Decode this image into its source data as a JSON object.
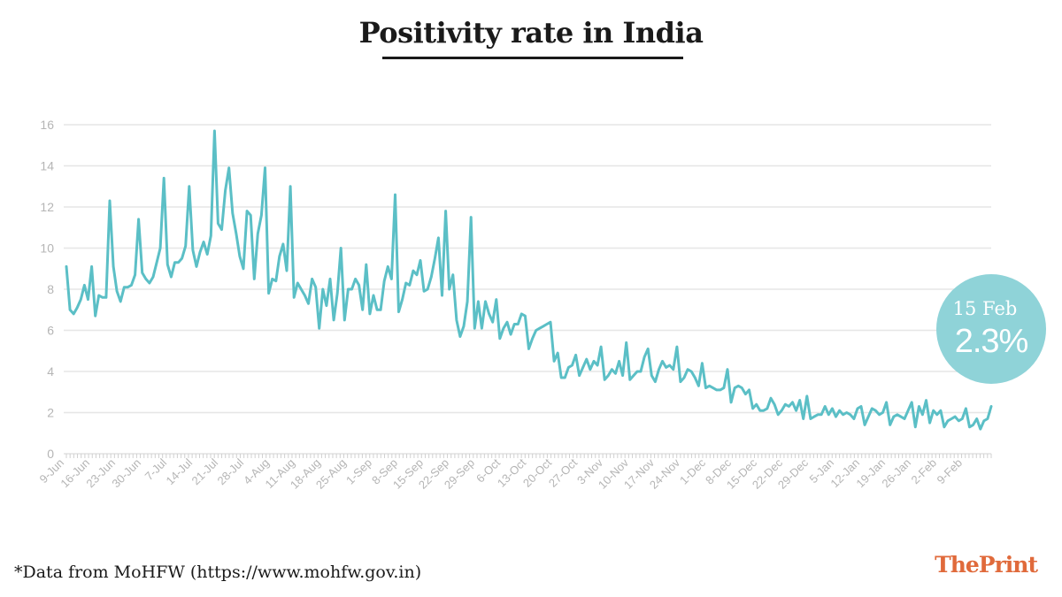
{
  "title": "Positivity rate in India",
  "footnote": "*Data from MoHFW (https://www.mohfw.gov.in)",
  "brand": {
    "part1": "The",
    "part2": "Print"
  },
  "callout": {
    "date": "15 Feb",
    "value": "2.3%"
  },
  "colors": {
    "line": "#5bbfc6",
    "callout": "#8fd3d8",
    "grid": "#e6e6e6",
    "axis_text": "#b5b5b5",
    "brand": "#e06a3b"
  },
  "chart_data": {
    "type": "line",
    "title": "Positivity rate in India",
    "xlabel": "",
    "ylabel": "",
    "ylim": [
      0,
      16
    ],
    "yticks": [
      0,
      2,
      4,
      6,
      8,
      10,
      12,
      14,
      16
    ],
    "grid": true,
    "x_tick_labels": [
      "9-Jun",
      "16-Jun",
      "23-Jun",
      "30-Jun",
      "7-Jul",
      "14-Jul",
      "21-Jul",
      "28-Jul",
      "4-Aug",
      "11-Aug",
      "18-Aug",
      "25-Aug",
      "1-Sep",
      "8-Sep",
      "15-Sep",
      "22-Sep",
      "29-Sep",
      "6-Oct",
      "13-Oct",
      "20-Oct",
      "27-Oct",
      "3-Nov",
      "10-Nov",
      "17-Nov",
      "24-Nov",
      "1-Dec",
      "8-Dec",
      "15-Dec",
      "22-Dec",
      "29-Dec",
      "5-Jan",
      "12-Jan",
      "19-Jan",
      "26-Jan",
      "2-Feb",
      "9-Feb"
    ],
    "x_start": "9-Jun",
    "x_end": "15-Feb",
    "values": [
      9.1,
      7.0,
      6.8,
      7.1,
      7.5,
      8.2,
      7.5,
      9.1,
      6.7,
      7.7,
      7.6,
      7.6,
      12.3,
      9.1,
      7.9,
      7.4,
      8.1,
      8.1,
      8.2,
      8.7,
      11.4,
      8.8,
      8.5,
      8.3,
      8.6,
      9.3,
      10.0,
      13.4,
      9.2,
      8.6,
      9.3,
      9.3,
      9.5,
      10.1,
      13.0,
      9.9,
      9.1,
      9.8,
      10.3,
      9.7,
      10.6,
      15.7,
      11.2,
      10.9,
      12.8,
      13.9,
      11.7,
      10.7,
      9.6,
      9.0,
      11.8,
      11.6,
      8.5,
      10.7,
      11.6,
      13.9,
      7.8,
      8.5,
      8.4,
      9.6,
      10.2,
      8.9,
      13.0,
      7.6,
      8.3,
      8.0,
      7.7,
      7.3,
      8.5,
      8.1,
      6.1,
      8.0,
      7.2,
      8.5,
      6.5,
      7.8,
      10.0,
      6.5,
      8.0,
      8.0,
      8.5,
      8.2,
      7.0,
      9.2,
      6.8,
      7.7,
      7.0,
      7.0,
      8.4,
      9.1,
      8.5,
      12.6,
      6.9,
      7.5,
      8.3,
      8.2,
      8.9,
      8.7,
      9.4,
      7.9,
      8.0,
      8.6,
      9.5,
      10.5,
      7.7,
      11.8,
      8.0,
      8.7,
      6.5,
      5.7,
      6.2,
      7.4,
      11.5,
      6.1,
      7.4,
      6.1,
      7.4,
      6.8,
      6.4,
      7.5,
      5.6,
      6.1,
      6.4,
      5.8,
      6.3,
      6.3,
      6.8,
      6.7,
      5.1,
      5.6,
      6.0,
      6.1,
      6.2,
      6.3,
      6.4,
      4.5,
      4.9,
      3.7,
      3.7,
      4.2,
      4.3,
      4.8,
      3.8,
      4.2,
      4.6,
      4.1,
      4.5,
      4.3,
      5.2,
      3.6,
      3.8,
      4.1,
      3.9,
      4.5,
      3.8,
      5.4,
      3.6,
      3.8,
      4.0,
      4.0,
      4.7,
      5.1,
      3.8,
      3.5,
      4.1,
      4.5,
      4.2,
      4.3,
      4.1,
      5.2,
      3.5,
      3.7,
      4.1,
      4.0,
      3.7,
      3.3,
      4.4,
      3.2,
      3.3,
      3.2,
      3.1,
      3.1,
      3.2,
      4.1,
      2.5,
      3.2,
      3.3,
      3.2,
      2.9,
      3.1,
      2.2,
      2.4,
      2.1,
      2.1,
      2.2,
      2.7,
      2.4,
      1.9,
      2.1,
      2.4,
      2.3,
      2.5,
      2.1,
      2.6,
      1.7,
      2.8,
      1.7,
      1.8,
      1.9,
      1.9,
      2.3,
      1.9,
      2.2,
      1.8,
      2.1,
      1.9,
      2.0,
      1.9,
      1.7,
      2.2,
      2.3,
      1.4,
      1.8,
      2.2,
      2.1,
      1.9,
      2.0,
      2.5,
      1.4,
      1.8,
      1.9,
      1.8,
      1.7,
      2.1,
      2.5,
      1.3,
      2.3,
      1.9,
      2.6,
      1.5,
      2.1,
      1.9,
      2.1,
      1.3,
      1.6,
      1.7,
      1.8,
      1.6,
      1.7,
      2.2,
      1.3,
      1.4,
      1.7,
      1.2,
      1.6,
      1.7,
      2.3
    ]
  }
}
